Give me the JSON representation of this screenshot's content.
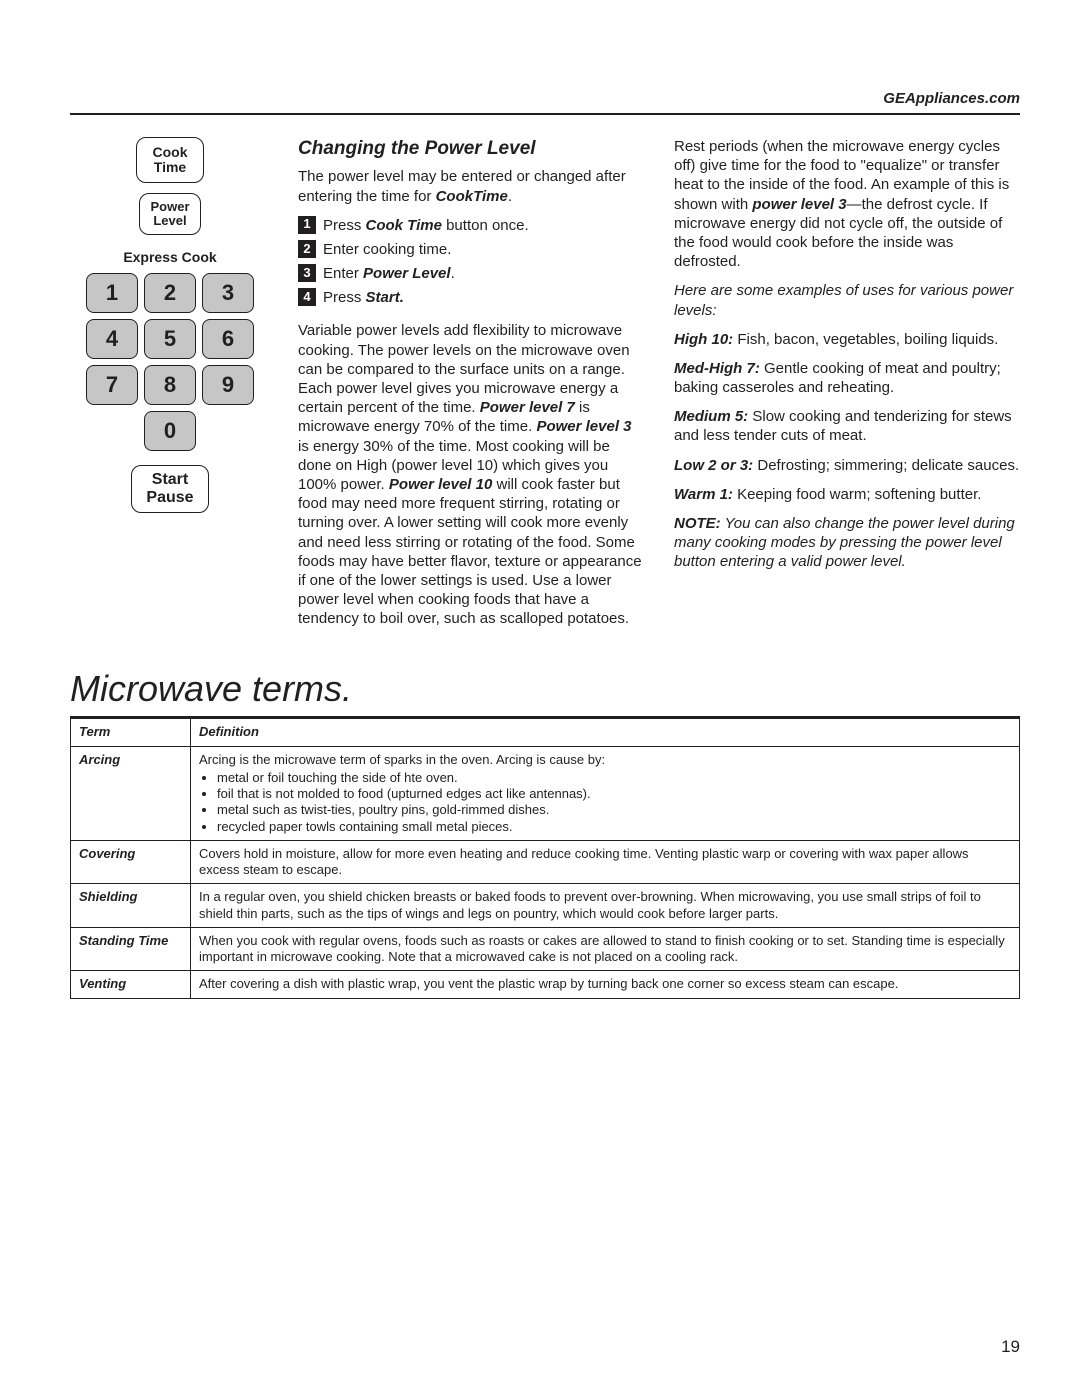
{
  "header": {
    "site": "GEAppliances.com"
  },
  "keypad": {
    "cook_time": "Cook\nTime",
    "power_level": "Power\nLevel",
    "express_label": "Express Cook",
    "keys": [
      "1",
      "2",
      "3",
      "4",
      "5",
      "6",
      "7",
      "8",
      "9",
      "0"
    ],
    "start": "Start\nPause"
  },
  "content": {
    "title": "Changing the Power Level",
    "intro_pre": "The power level may be entered or changed after entering the time for ",
    "intro_bold": "CookTime",
    "intro_post": ".",
    "steps_text": {
      "s1_a": "Press ",
      "s1_b": "Cook Time",
      "s1_c": " button once.",
      "s2": "Enter cooking time.",
      "s3_a": "Enter ",
      "s3_b": "Power Level",
      "s3_c": ".",
      "s4_a": "Press ",
      "s4_b": "Start."
    },
    "para_variable": {
      "t1": "Variable power levels add flexibility to microwave cooking. The power levels on the microwave oven can be compared to the surface units on a range. Each power level gives you microwave energy a certain percent of the time. ",
      "pl7": "Power level 7",
      "t2": " is microwave energy 70% of the time. ",
      "pl3": "Power level 3",
      "t3": " is energy 30% of the time. Most cooking will be done on High (power level 10) which gives you 100% power. ",
      "pl10": "Power level 10",
      "t4": " will cook faster but food may need more frequent stirring, rotating or turning over. A lower setting will cook more evenly and need less stirring or rotating of the food. Some foods may have better flavor, texture or appearance if one of the lower settings is used. Use a lower power level when cooking foods that have a tendency to boil over, such as scalloped potatoes."
    },
    "rest": {
      "t1": "Rest periods (when the microwave energy cycles off) give time for the food to \"equalize\" or transfer heat to the inside  of the food. An example of this is shown with ",
      "pl3": "power level 3",
      "t2": "—the defrost cycle. If microwave energy did not cycle off, the outside of the food would cook before the inside was defrosted."
    },
    "examples_intro": "Here are some examples of uses for various power levels:",
    "levels": {
      "high_b": "High 10:",
      "high_t": "  Fish, bacon, vegetables, boiling liquids.",
      "medhigh_b": "Med-High 7:",
      "medhigh_t": "  Gentle cooking of meat and poultry; baking casseroles and reheating.",
      "med_b": "Medium 5:",
      "med_t": "  Slow cooking and tenderizing for stews and less tender cuts of meat.",
      "low_b": "Low 2 or 3:",
      "low_t": "  Defrosting; simmering; delicate sauces.",
      "warm_b": "Warm 1:",
      "warm_t": "  Keeping food warm; softening butter."
    },
    "note_b": "NOTE:",
    "note_t": "  You can also change the power level during many cooking modes by pressing the power level button entering a valid power level."
  },
  "terms": {
    "title": "Microwave terms.",
    "head_term": "Term",
    "head_def": "Definition",
    "rows": {
      "arcing": {
        "term": "Arcing",
        "lead": "Arcing is the microwave term of sparks in the oven.  Arcing is cause by:",
        "b1": "metal or foil touching the side of hte oven.",
        "b2": "foil that is not molded to food (upturned edges act like antennas).",
        "b3": "metal such as twist-ties, poultry pins, gold-rimmed dishes.",
        "b4": "recycled paper towls containing small metal pieces."
      },
      "covering": {
        "term": "Covering",
        "def": "Covers hold in moisture, allow for more even heating and reduce cooking time.  Venting plastic warp or covering with wax paper allows excess steam to escape."
      },
      "shielding": {
        "term": "Shielding",
        "def": "In a regular oven, you shield chicken breasts or baked foods to prevent over-browning.  When microwaving, you use small strips of foil to shield thin parts, such as the tips of wings and legs on pountry, which would cook before larger parts."
      },
      "standing": {
        "term": "Standing Time",
        "def": "When you cook with regular ovens, foods such as roasts or cakes are allowed to stand to finish cooking or to set.  Standing time is especially important in microwave cooking.  Note that a microwaved cake is not placed on a cooling rack."
      },
      "venting": {
        "term": "Venting",
        "def": "After covering a dish with plastic wrap, you vent the plastic wrap by turning back one corner so excess steam can escape."
      }
    }
  },
  "page_number": "19"
}
